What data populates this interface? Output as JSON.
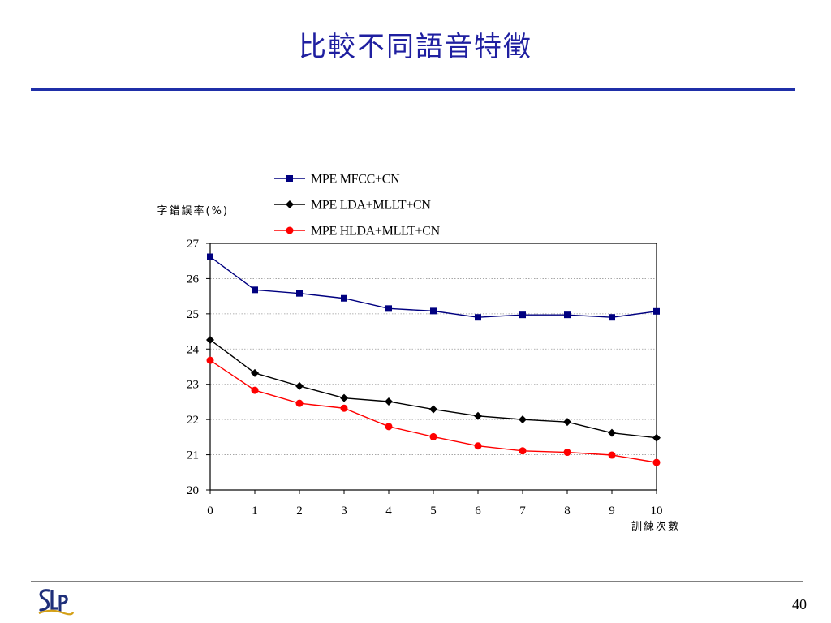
{
  "slide": {
    "title": "比較不同語音特徵",
    "page_number": "40",
    "logo_text": "SLP",
    "colors": {
      "title": "#1f1fa0",
      "rule": "#1f2fa8"
    }
  },
  "chart_data": {
    "type": "line",
    "xlabel": "訓練次數",
    "ylabel": "字錯誤率(%)",
    "x": [
      0,
      1,
      2,
      3,
      4,
      5,
      6,
      7,
      8,
      9,
      10
    ],
    "xlim": [
      0,
      10
    ],
    "ylim": [
      20,
      27
    ],
    "yticks": [
      20,
      21,
      22,
      23,
      24,
      25,
      26,
      27
    ],
    "grid": "horizontal dotted",
    "legend_position": "top",
    "series": [
      {
        "name": "MPE MFCC+CN",
        "color": "#000080",
        "marker": "square",
        "values": [
          26.62,
          25.68,
          25.58,
          25.44,
          25.15,
          25.08,
          24.9,
          24.97,
          24.97,
          24.9,
          25.07
        ]
      },
      {
        "name": "MPE LDA+MLLT+CN",
        "color": "#000000",
        "marker": "diamond",
        "values": [
          24.26,
          23.32,
          22.95,
          22.61,
          22.51,
          22.29,
          22.1,
          22.0,
          21.93,
          21.62,
          21.48
        ]
      },
      {
        "name": "MPE HLDA+MLLT+CN",
        "color": "#ff0000",
        "marker": "circle",
        "values": [
          23.68,
          22.83,
          22.46,
          22.32,
          21.8,
          21.51,
          21.25,
          21.11,
          21.07,
          20.99,
          20.78
        ]
      }
    ]
  }
}
